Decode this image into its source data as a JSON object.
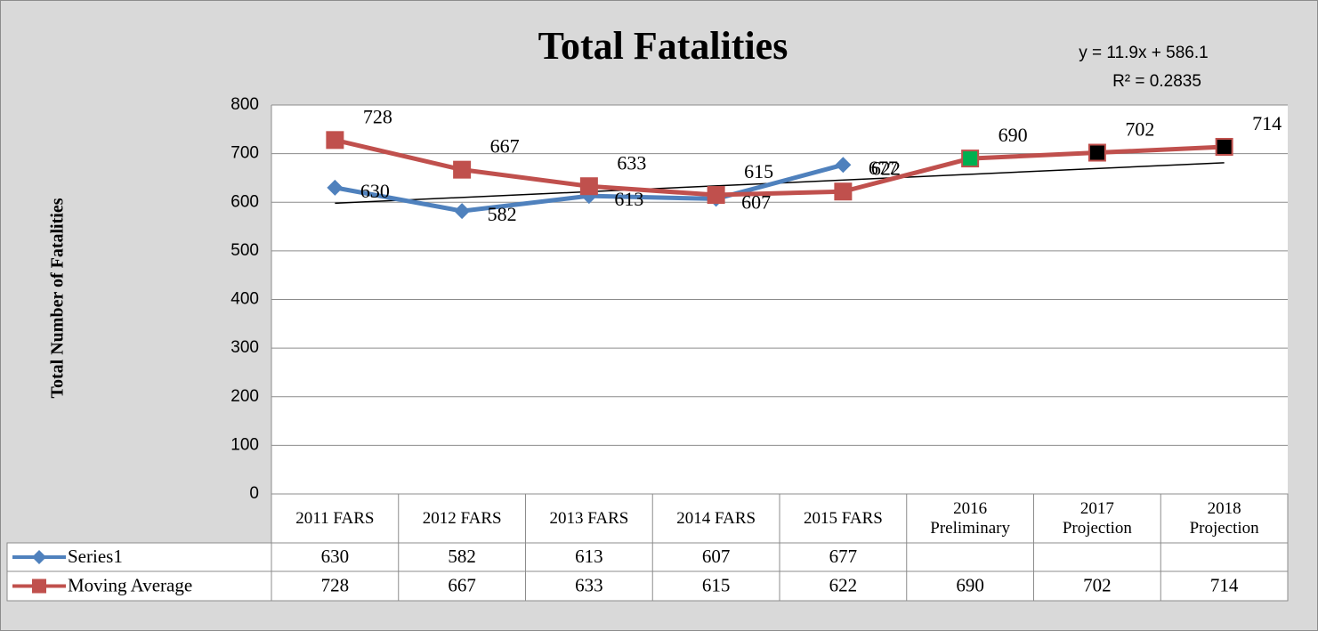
{
  "chart_data": {
    "type": "line",
    "title": "Total Fatalities",
    "y_label": "Total Number of Fatalities",
    "categories": [
      "2011 FARS",
      "2012 FARS",
      "2013 FARS",
      "2014 FARS",
      "2015 FARS",
      "2016 Preliminary",
      "2017 Projection",
      "2018 Projection"
    ],
    "series": [
      {
        "name": "Series1",
        "color": "#4f81bd",
        "marker": "diamond",
        "values": [
          630,
          582,
          613,
          607,
          677,
          null,
          null,
          null
        ]
      },
      {
        "name": "Moving Average",
        "color": "#c0504d",
        "marker": "square",
        "marker_colors": [
          "#c0504d",
          "#c0504d",
          "#c0504d",
          "#c0504d",
          "#c0504d",
          "#00b050",
          "#000000",
          "#000000"
        ],
        "values": [
          728,
          667,
          633,
          615,
          622,
          690,
          702,
          714
        ]
      }
    ],
    "trendline": {
      "label": "y = 11.9x + 586.1",
      "r2_label": "R² = 0.2835",
      "slope": 11.9,
      "intercept": 586.1,
      "color": "#000000"
    },
    "ylim": [
      0,
      800
    ],
    "yticks": [
      0,
      100,
      200,
      300,
      400,
      500,
      600,
      700,
      800
    ],
    "grid": true,
    "data_table": true
  }
}
